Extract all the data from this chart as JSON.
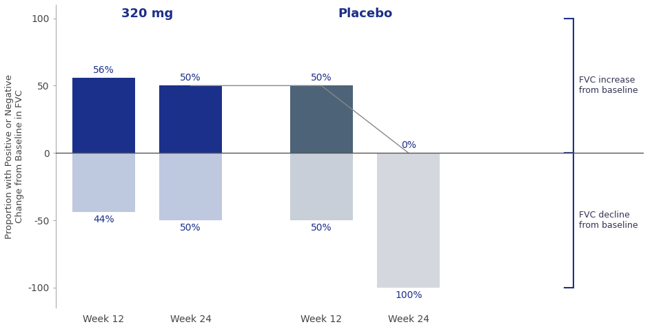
{
  "positive_values": [
    56,
    50,
    50,
    0
  ],
  "negative_values": [
    -44,
    -50,
    -50,
    -100
  ],
  "positive_labels": [
    "56%",
    "50%",
    "50%",
    "0%"
  ],
  "negative_labels": [
    "44%",
    "50%",
    "50%",
    "100%"
  ],
  "x_labels": [
    "Week 12",
    "Week 24",
    "Week 12",
    "Week 24"
  ],
  "group_320_label": "320 mg",
  "group_placebo_label": "Placebo",
  "ylim": [
    -115,
    110
  ],
  "yticks": [
    -100,
    -50,
    0,
    50,
    100
  ],
  "ylabel": "Proportion with Positive or Negative\nChange from Baseline in FVC",
  "title_color": "#1b2f8a",
  "label_color": "#1b2f8a",
  "bar_dark_blue": "#1b308a",
  "bar_slate_gray": "#4d6378",
  "bar_light_blue_320": "#bec8df",
  "bar_light_gray_placebo12": "#c8cfd8",
  "bar_light_gray_placebo24": "#d4d8de",
  "bar_zero_pos": "#e8eaec",
  "bracket_color": "#1b2f8a",
  "line_color": "#888888",
  "fvc_increase_label": "FVC increase\nfrom baseline",
  "fvc_decline_label": "FVC decline\nfrom baseline",
  "x_positions": [
    1,
    2,
    3.5,
    4.5
  ],
  "bar_width": 0.72,
  "group_320_x": 1.5,
  "group_placebo_x": 4.0,
  "xlim": [
    0.45,
    7.2
  ]
}
